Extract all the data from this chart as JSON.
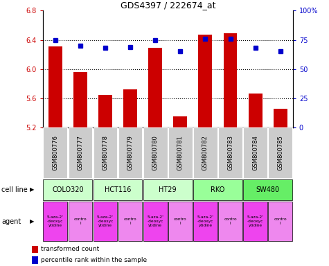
{
  "title": "GDS4397 / 222674_at",
  "samples": [
    "GSM800776",
    "GSM800777",
    "GSM800778",
    "GSM800779",
    "GSM800780",
    "GSM800781",
    "GSM800782",
    "GSM800783",
    "GSM800784",
    "GSM800785"
  ],
  "bar_values": [
    6.31,
    5.96,
    5.65,
    5.72,
    6.29,
    5.35,
    6.47,
    6.49,
    5.67,
    5.46
  ],
  "dot_values": [
    75,
    70,
    68,
    69,
    75,
    65,
    76,
    76,
    68,
    65
  ],
  "ylim_left": [
    5.2,
    6.8
  ],
  "ylim_right": [
    0,
    100
  ],
  "yticks_left": [
    5.2,
    5.6,
    6.0,
    6.4,
    6.8
  ],
  "yticks_right": [
    0,
    25,
    50,
    75,
    100
  ],
  "bar_color": "#cc0000",
  "dot_color": "#0000cc",
  "bar_bottom": 5.2,
  "cell_lines": [
    {
      "label": "COLO320",
      "start": 0,
      "end": 2,
      "color": "#ccffcc"
    },
    {
      "label": "HCT116",
      "start": 2,
      "end": 4,
      "color": "#ccffcc"
    },
    {
      "label": "HT29",
      "start": 4,
      "end": 6,
      "color": "#ccffcc"
    },
    {
      "label": "RKO",
      "start": 6,
      "end": 8,
      "color": "#99ff99"
    },
    {
      "label": "SW480",
      "start": 8,
      "end": 10,
      "color": "#66ee66"
    }
  ],
  "agents": [
    {
      "label": "5-aza-2'\n-deoxyc\nytidine",
      "color": "#ee44ee"
    },
    {
      "label": "contro\nl",
      "color": "#ee88ee"
    },
    {
      "label": "5-aza-2'\n-deoxyc\nytidine",
      "color": "#ee44ee"
    },
    {
      "label": "contro\nl",
      "color": "#ee88ee"
    },
    {
      "label": "5-aza-2'\n-deoxyc\nytidine",
      "color": "#ee44ee"
    },
    {
      "label": "contro\nl",
      "color": "#ee88ee"
    },
    {
      "label": "5-aza-2'\n-deoxyc\nytidine",
      "color": "#ee44ee"
    },
    {
      "label": "contro\nl",
      "color": "#ee88ee"
    },
    {
      "label": "5-aza-2'\n-deoxyc\nytidine",
      "color": "#ee44ee"
    },
    {
      "label": "contro\nl",
      "color": "#ee88ee"
    }
  ],
  "legend_bar_label": "transformed count",
  "legend_dot_label": "percentile rank within the sample",
  "cell_line_label": "cell line",
  "agent_label": "agent",
  "sample_bg_color": "#cccccc",
  "grid_yticks": [
    5.6,
    6.0,
    6.4
  ]
}
